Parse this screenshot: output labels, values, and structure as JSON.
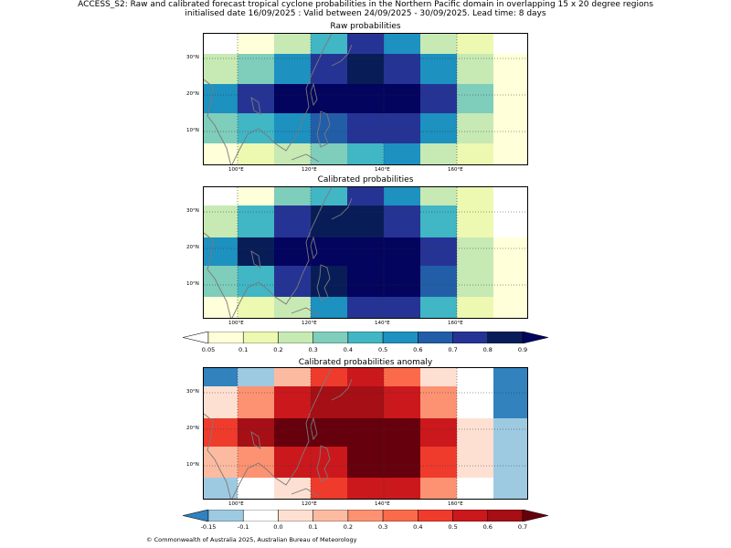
{
  "header": {
    "line1": "ACCESS_S2: Raw and calibrated forecast tropical cyclone probabilities in the Northern Pacific domain in overlapping 15 x 20 degree regions",
    "line2": "initialised date 16/09/2025 :  Valid between 24/09/2025 - 30/09/2025. Lead time: 8 days"
  },
  "axes": {
    "lon_labels": [
      "100°E",
      "120°E",
      "140°E",
      "160°E"
    ],
    "lat_labels": [
      "30°N",
      "20°N",
      "10°N"
    ]
  },
  "panels": {
    "raw": {
      "title": "Raw probabilities"
    },
    "calibrated": {
      "title": "Calibrated probabilities"
    },
    "anomaly": {
      "title": "Calibrated probabilities anomaly"
    }
  },
  "colorbars": {
    "probability": {
      "tick_labels": [
        "0.05",
        "0.1",
        "0.2",
        "0.3",
        "0.4",
        "0.5",
        "0.6",
        "0.7",
        "0.8",
        "0.9"
      ],
      "colors": [
        "#ffffd9",
        "#edf8b1",
        "#c7e9b4",
        "#7fcdbb",
        "#41b6c4",
        "#1d91c0",
        "#225ea8",
        "#253494",
        "#081d58"
      ],
      "under_color": "#ffffff",
      "over_color": "#03045e"
    },
    "anomaly": {
      "tick_labels": [
        "-0.15",
        "-0.1",
        "0.0",
        "0.1",
        "0.2",
        "0.3",
        "0.4",
        "0.5",
        "0.6",
        "0.7"
      ],
      "colors": [
        "#9ecae1",
        "#ffffff",
        "#fee0d2",
        "#fcbba1",
        "#fc9272",
        "#fb6a4a",
        "#ef3b2c",
        "#cb181d",
        "#a50f15"
      ],
      "under_color": "#3182bd",
      "over_color": "#67000d"
    }
  },
  "footer": {
    "copyright": "© Commonwealth of Australia 2025, Australian Bureau of Meteorology"
  }
}
